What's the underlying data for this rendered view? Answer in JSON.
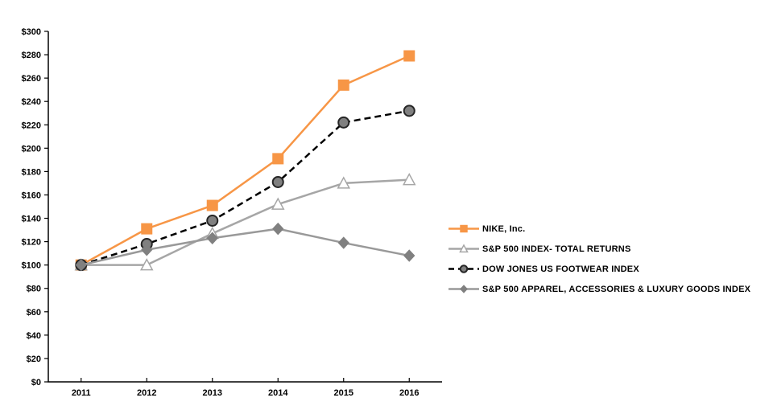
{
  "chart_data": {
    "type": "line",
    "title": "",
    "categories": [
      "2011",
      "2012",
      "2013",
      "2014",
      "2015",
      "2016"
    ],
    "x_axis": {
      "label": ""
    },
    "y_axis": {
      "label": "",
      "min": 0,
      "max": 300,
      "step": 20,
      "tick_prefix": "$",
      "tick_labels": [
        "$0",
        "$20",
        "$40",
        "$60",
        "$80",
        "$100",
        "$120",
        "$140",
        "$160",
        "$180",
        "$200",
        "$220",
        "$240",
        "$260",
        "$280",
        "$300"
      ]
    },
    "grid": false,
    "legend_position": "right",
    "series": [
      {
        "name": "NIKE, Inc.",
        "values": [
          100,
          131,
          151,
          191,
          254,
          279
        ],
        "color": "#F79646",
        "line_style": "solid",
        "marker": "square",
        "marker_fill": "#F79646",
        "marker_stroke": "#F79646"
      },
      {
        "name": "S&P 500 INDEX- TOTAL RETURNS",
        "values": [
          100,
          100,
          127,
          152,
          170,
          173
        ],
        "color": "#A6A6A6",
        "line_style": "solid",
        "marker": "triangle",
        "marker_fill": "#FFFFFF",
        "marker_stroke": "#A6A6A6"
      },
      {
        "name": "DOW JONES US FOOTWEAR INDEX",
        "values": [
          100,
          118,
          138,
          171,
          222,
          232
        ],
        "color": "#000000",
        "line_style": "dashed",
        "marker": "circle",
        "marker_fill": "#808080",
        "marker_stroke": "#262626"
      },
      {
        "name": "S&P 500 APPAREL, ACCESSORIES & LUXURY GOODS INDEX",
        "values": [
          100,
          113,
          123,
          131,
          119,
          108
        ],
        "color": "#999999",
        "line_style": "solid",
        "marker": "diamond",
        "marker_fill": "#808080",
        "marker_stroke": "#808080"
      }
    ]
  }
}
